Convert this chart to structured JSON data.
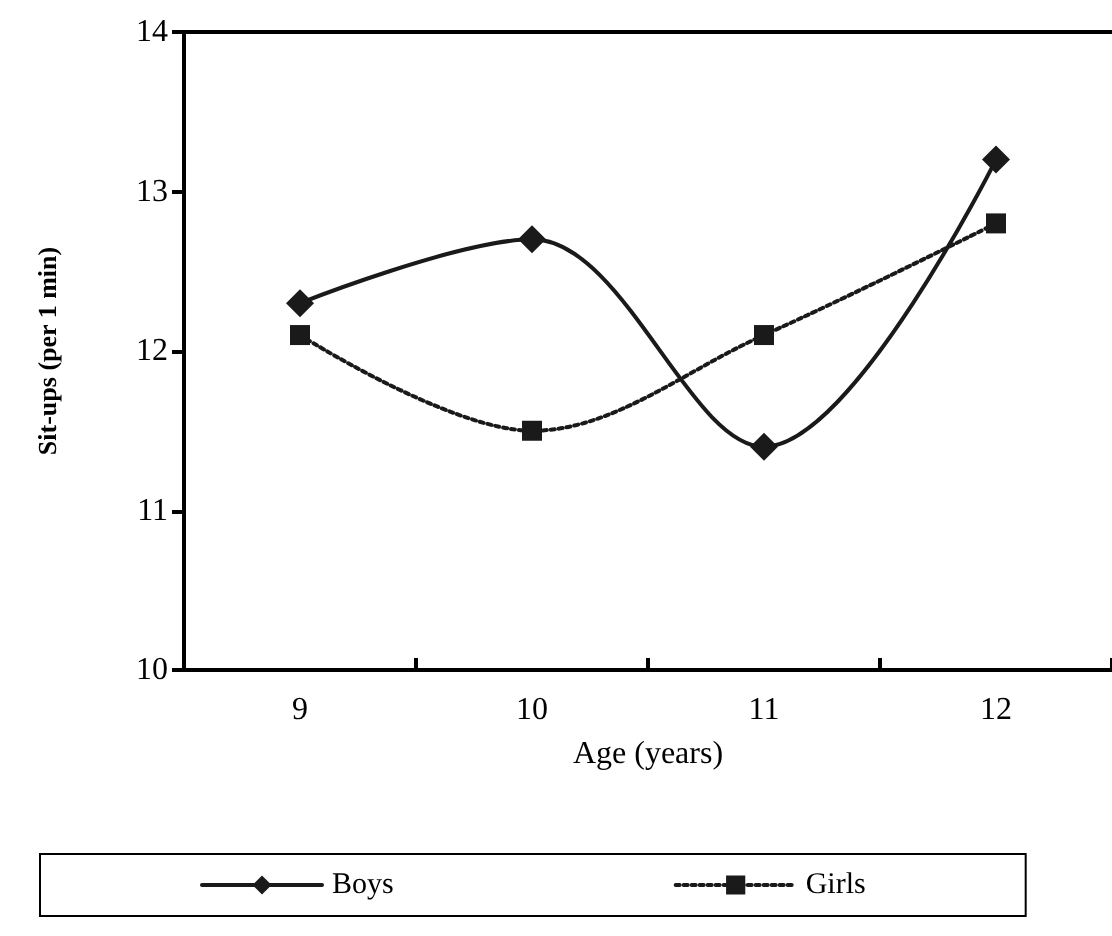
{
  "chart_data": {
    "type": "line",
    "xlabel": "Age (years)",
    "ylabel": "Sit-ups (per 1 min)",
    "categories": [
      "9",
      "10",
      "11",
      "12"
    ],
    "series": [
      {
        "name": "Boys",
        "color": "#1a1a1a",
        "values": [
          12.3,
          12.7,
          11.4,
          13.2
        ],
        "marker": "diamond",
        "line_style": "solid"
      },
      {
        "name": "Girls",
        "color": "#1a1a1a",
        "values": [
          12.1,
          11.5,
          12.1,
          12.8
        ],
        "marker": "square",
        "line_style": "dotted"
      }
    ],
    "ylim": [
      10,
      14
    ],
    "yticks": [
      10,
      11,
      12,
      13,
      14
    ],
    "grid": false,
    "legend": "bottom"
  }
}
